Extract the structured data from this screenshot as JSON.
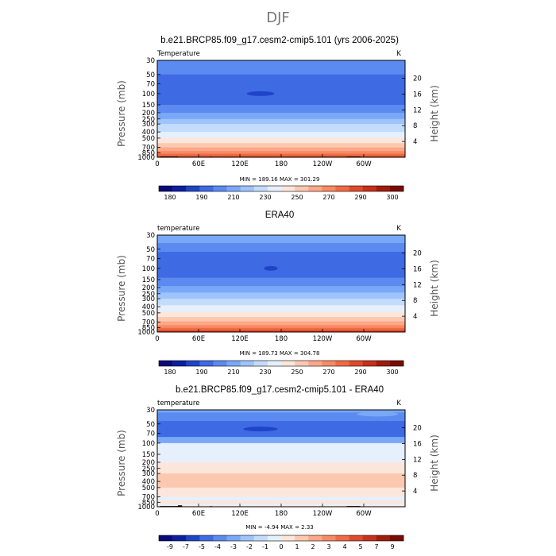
{
  "page_title": "DJF",
  "chart_data": [
    {
      "type": "heatmap",
      "title": "b.e21.BRCP85.f09_g17.cesm2-cmip5.101 (yrs 2006-2025)",
      "left_label": "Temperature",
      "units": "K",
      "ylabel": "Pressure (mb)",
      "y2label": "Height (km)",
      "pressure_ticks": [
        "30",
        "50",
        "70",
        "100",
        "150",
        "200",
        "250",
        "300",
        "400",
        "500",
        "700",
        "850",
        "1000"
      ],
      "pressure_values": [
        30,
        50,
        70,
        100,
        150,
        200,
        250,
        300,
        400,
        500,
        700,
        850,
        1000
      ],
      "height_ticks": [
        "20",
        "16",
        "12",
        "8",
        "4"
      ],
      "height_values": [
        20,
        16,
        12,
        8,
        4
      ],
      "x_ticks": [
        "0",
        "60E",
        "120E",
        "180",
        "120W",
        "60W"
      ],
      "x_values": [
        0,
        60,
        120,
        180,
        240,
        300
      ],
      "xlim": [
        0,
        360
      ],
      "ylim": [
        1000,
        30
      ],
      "minmax_text": "MIN = 189.16   MAX = 301.29",
      "min": 189.16,
      "max": 301.29,
      "colorbar": {
        "colors": [
          "#0a0a78",
          "#0c1fa0",
          "#1f44c8",
          "#3e6ae4",
          "#5b8af0",
          "#7aa8f8",
          "#9ec4fc",
          "#c4dcfc",
          "#e6f0fc",
          "#fce6dc",
          "#fcc8b0",
          "#fca888",
          "#f88a64",
          "#f06a44",
          "#e04a2c",
          "#c8301a",
          "#a01c0c",
          "#7a0a06"
        ],
        "labels": [
          "180",
          "190",
          "210",
          "230",
          "250",
          "270",
          "290",
          "300"
        ]
      },
      "bands": [
        {
          "p": 30,
          "color": "#5b8af0"
        },
        {
          "p": 50,
          "color": "#3e6ae4"
        },
        {
          "p": 100,
          "color": "#3e6ae4"
        },
        {
          "p": 150,
          "color": "#5b8af0"
        },
        {
          "p": 200,
          "color": "#7aa8f8"
        },
        {
          "p": 250,
          "color": "#9ec4fc"
        },
        {
          "p": 300,
          "color": "#c4dcfc"
        },
        {
          "p": 400,
          "color": "#e6f0fc"
        },
        {
          "p": 500,
          "color": "#fce6dc"
        },
        {
          "p": 600,
          "color": "#fcc8b0"
        },
        {
          "p": 700,
          "color": "#fca888"
        },
        {
          "p": 800,
          "color": "#f88a64"
        },
        {
          "p": 880,
          "color": "#f06a44"
        },
        {
          "p": 950,
          "color": "#e04a2c"
        }
      ],
      "blobs": [
        {
          "lon": 150,
          "p": 100,
          "dlon": 20,
          "color": "#1f44c8"
        }
      ],
      "terrain": [
        {
          "lon0": 4,
          "lon1": 30,
          "p": 975
        },
        {
          "lon0": 76,
          "lon1": 80,
          "p": 980
        },
        {
          "lon0": 88,
          "lon1": 92,
          "p": 985
        },
        {
          "lon0": 275,
          "lon1": 295,
          "p": 975
        }
      ]
    },
    {
      "type": "heatmap",
      "title": "ERA40",
      "left_label": "temperature",
      "units": "K",
      "ylabel": "Pressure (mb)",
      "y2label": "Height (km)",
      "pressure_ticks": [
        "30",
        "50",
        "70",
        "100",
        "150",
        "200",
        "250",
        "300",
        "400",
        "500",
        "700",
        "850",
        "1000"
      ],
      "pressure_values": [
        30,
        50,
        70,
        100,
        150,
        200,
        250,
        300,
        400,
        500,
        700,
        850,
        1000
      ],
      "height_ticks": [
        "20",
        "16",
        "12",
        "8",
        "4"
      ],
      "height_values": [
        20,
        16,
        12,
        8,
        4
      ],
      "x_ticks": [
        "0",
        "60E",
        "120E",
        "180",
        "120W",
        "60W"
      ],
      "x_values": [
        0,
        60,
        120,
        180,
        240,
        300
      ],
      "xlim": [
        0,
        360
      ],
      "ylim": [
        1000,
        30
      ],
      "minmax_text": "MIN = 189.73   MAX = 304.78",
      "min": 189.73,
      "max": 304.78,
      "colorbar": {
        "colors": [
          "#0a0a78",
          "#0c1fa0",
          "#1f44c8",
          "#3e6ae4",
          "#5b8af0",
          "#7aa8f8",
          "#9ec4fc",
          "#c4dcfc",
          "#e6f0fc",
          "#fce6dc",
          "#fcc8b0",
          "#fca888",
          "#f88a64",
          "#f06a44",
          "#e04a2c",
          "#c8301a",
          "#a01c0c",
          "#7a0a06"
        ],
        "labels": [
          "180",
          "190",
          "210",
          "230",
          "250",
          "270",
          "290",
          "300"
        ]
      },
      "bands": [
        {
          "p": 30,
          "color": "#7aa8f8"
        },
        {
          "p": 40,
          "color": "#5b8af0"
        },
        {
          "p": 55,
          "color": "#3e6ae4"
        },
        {
          "p": 140,
          "color": "#5b8af0"
        },
        {
          "p": 190,
          "color": "#7aa8f8"
        },
        {
          "p": 240,
          "color": "#9ec4fc"
        },
        {
          "p": 300,
          "color": "#c4dcfc"
        },
        {
          "p": 380,
          "color": "#e6f0fc"
        },
        {
          "p": 480,
          "color": "#fce6dc"
        },
        {
          "p": 580,
          "color": "#fcc8b0"
        },
        {
          "p": 680,
          "color": "#fca888"
        },
        {
          "p": 780,
          "color": "#f88a64"
        },
        {
          "p": 860,
          "color": "#f06a44"
        },
        {
          "p": 930,
          "color": "#e04a2c"
        },
        {
          "p": 980,
          "color": "#c8301a"
        }
      ],
      "blobs": [
        {
          "lon": 165,
          "p": 100,
          "dlon": 10,
          "color": "#1f44c8"
        }
      ],
      "terrain": []
    },
    {
      "type": "heatmap",
      "title": "b.e21.BRCP85.f09_g17.cesm2-cmip5.101 - ERA40",
      "left_label": "temperature",
      "units": "K",
      "ylabel": "Pressure (mb)",
      "y2label": "Height (km)",
      "pressure_ticks": [
        "30",
        "50",
        "70",
        "100",
        "150",
        "200",
        "250",
        "300",
        "400",
        "500",
        "700",
        "850",
        "1000"
      ],
      "pressure_values": [
        30,
        50,
        70,
        100,
        150,
        200,
        250,
        300,
        400,
        500,
        700,
        850,
        1000
      ],
      "height_ticks": [
        "20",
        "16",
        "12",
        "8",
        "4"
      ],
      "height_values": [
        20,
        16,
        12,
        8,
        4
      ],
      "x_ticks": [
        "0",
        "60E",
        "120E",
        "180",
        "120W",
        "60W"
      ],
      "x_values": [
        0,
        60,
        120,
        180,
        240,
        300
      ],
      "xlim": [
        0,
        360
      ],
      "ylim": [
        1000,
        30
      ],
      "minmax_text": "MIN =  -4.94   MAX =   2.33",
      "min": -4.94,
      "max": 2.33,
      "colorbar": {
        "colors": [
          "#0a0a78",
          "#0c1fa0",
          "#1f44c8",
          "#3e6ae4",
          "#5b8af0",
          "#7aa8f8",
          "#9ec4fc",
          "#c4dcfc",
          "#e6f0fc",
          "#fce6dc",
          "#fcc8b0",
          "#fca888",
          "#f88a64",
          "#f06a44",
          "#e04a2c",
          "#c8301a",
          "#a01c0c",
          "#7a0a06"
        ],
        "labels": [
          "-9",
          "-7",
          "-5",
          "-4",
          "-3",
          "-2",
          "-1",
          "0",
          "1",
          "2",
          "3",
          "4",
          "5",
          "7",
          "9"
        ]
      },
      "bands": [
        {
          "p": 30,
          "color": "#7aa8f8"
        },
        {
          "p": 33,
          "color": "#5b8af0"
        },
        {
          "p": 45,
          "color": "#3e6ae4"
        },
        {
          "p": 80,
          "color": "#7aa8f8"
        },
        {
          "p": 100,
          "color": "#e6f0fc"
        },
        {
          "p": 200,
          "color": "#fce6dc"
        },
        {
          "p": 300,
          "color": "#fcc8b0"
        },
        {
          "p": 500,
          "color": "#fce6dc"
        },
        {
          "p": 700,
          "color": "#e6f0fc"
        },
        {
          "p": 800,
          "color": "#fce6dc"
        },
        {
          "p": 900,
          "color": "#e6f0fc"
        },
        {
          "p": 950,
          "color": "#fce6dc"
        }
      ],
      "blobs": [
        {
          "lon": 150,
          "p": 60,
          "dlon": 25,
          "color": "#1f44c8"
        },
        {
          "lon": 320,
          "p": 35,
          "dlon": 30,
          "color": "#7aa8f8"
        },
        {
          "lon": 245,
          "p": 350,
          "dlon": 25,
          "color": "#fcc8b0"
        }
      ],
      "terrain": [
        {
          "lon0": 4,
          "lon1": 30,
          "p": 975
        },
        {
          "lon0": 30,
          "lon1": 36,
          "p": 950
        },
        {
          "lon0": 76,
          "lon1": 80,
          "p": 980
        },
        {
          "lon0": 88,
          "lon1": 92,
          "p": 985
        },
        {
          "lon0": 275,
          "lon1": 295,
          "p": 975
        }
      ]
    }
  ]
}
